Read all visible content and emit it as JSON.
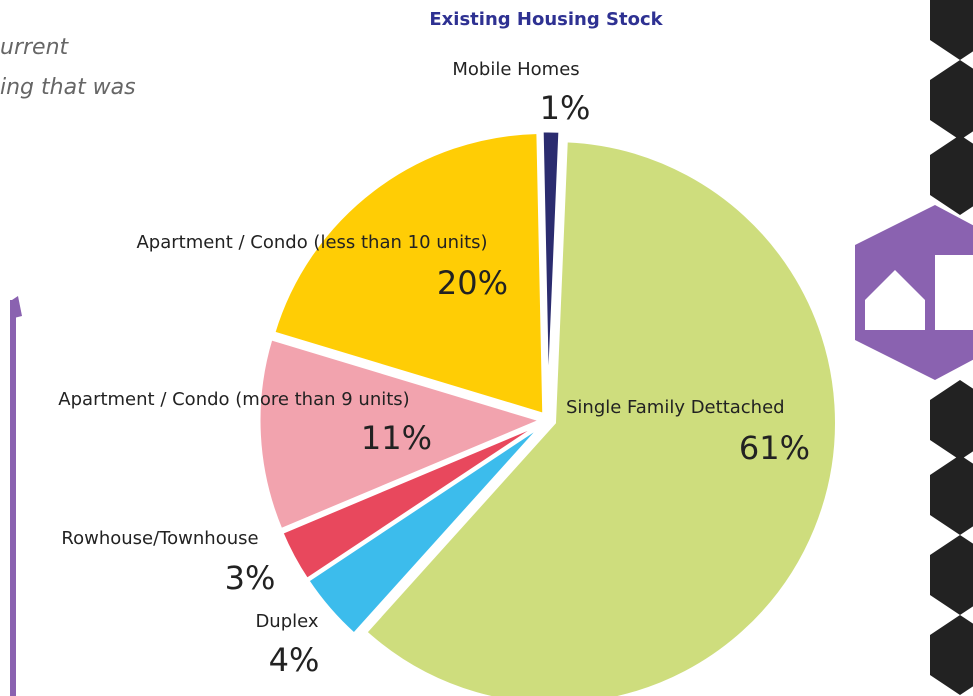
{
  "chart_data": {
    "type": "pie",
    "title": "Existing Housing Stock",
    "fragments": [
      "urrent",
      "ing that was"
    ],
    "categories": [
      "Mobile Homes",
      "Single Family Dettached",
      "Duplex",
      "Rowhouse/Townhouse",
      "Apartment / Condo (more than 9 units)",
      "Apartment / Condo (less than 10 units)"
    ],
    "values": [
      1,
      61,
      4,
      3,
      11,
      20
    ],
    "value_labels": [
      "1%",
      "61%",
      "4%",
      "3%",
      "11%",
      "20%"
    ],
    "colors": [
      "#2b2c6f",
      "#cedd7d",
      "#3cbcec",
      "#e8485d",
      "#f2a3ae",
      "#ffcd05"
    ]
  }
}
